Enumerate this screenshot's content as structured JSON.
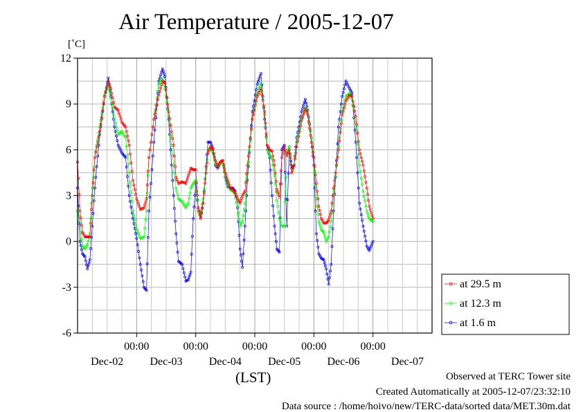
{
  "chart_data": {
    "type": "line",
    "title": "Air Temperature / 2005-12-07",
    "ylabel": "[˚C]",
    "xlabel": "(LST)",
    "ylim": [
      -6,
      12
    ],
    "yticks": [
      -6,
      -3,
      0,
      3,
      6,
      9,
      12
    ],
    "xlim": [
      0,
      144
    ],
    "xticks": [
      {
        "x": 24,
        "time": "00:00",
        "date": "Dec-02"
      },
      {
        "x": 48,
        "time": "00:00",
        "date": "Dec-03"
      },
      {
        "x": 72,
        "time": "00:00",
        "date": "Dec-04"
      },
      {
        "x": 96,
        "time": "00:00",
        "date": "Dec-05"
      },
      {
        "x": 120,
        "time": "00:00",
        "date": "Dec-06"
      }
    ],
    "trailing_date_label": {
      "x": 134,
      "date": "Dec-07"
    },
    "grid": true,
    "legend_position": "right",
    "x_unit_note": "hours from start of plot window",
    "series": [
      {
        "name": "at 29.5 m",
        "color": "#ff0000",
        "points": [
          [
            0,
            5.2
          ],
          [
            1,
            2.0
          ],
          [
            2,
            0.6
          ],
          [
            3,
            0.3
          ],
          [
            4,
            0.3
          ],
          [
            5,
            0.3
          ],
          [
            6,
            3.0
          ],
          [
            7,
            5.5
          ],
          [
            9,
            7.2
          ],
          [
            11,
            9.5
          ],
          [
            12.5,
            10.5
          ],
          [
            13.5,
            10.0
          ],
          [
            15,
            8.8
          ],
          [
            16.5,
            8.6
          ],
          [
            18,
            7.8
          ],
          [
            19.5,
            7.5
          ],
          [
            21,
            6.3
          ],
          [
            22.5,
            4.0
          ],
          [
            24,
            2.8
          ],
          [
            25.5,
            2.1
          ],
          [
            27,
            2.2
          ],
          [
            28,
            2.8
          ],
          [
            29,
            5.5
          ],
          [
            31,
            8.0
          ],
          [
            33,
            9.6
          ],
          [
            34.5,
            10.5
          ],
          [
            35.5,
            10.4
          ],
          [
            37,
            8.5
          ],
          [
            39,
            6.3
          ],
          [
            40,
            4.2
          ],
          [
            41,
            3.8
          ],
          [
            42.5,
            3.9
          ],
          [
            44,
            3.8
          ],
          [
            45,
            4.3
          ],
          [
            46,
            4.8
          ],
          [
            47,
            4.7
          ],
          [
            48,
            4.7
          ],
          [
            49,
            2.2
          ],
          [
            50,
            1.5
          ],
          [
            51,
            2.5
          ],
          [
            53,
            5.8
          ],
          [
            54,
            6.2
          ],
          [
            55,
            6.0
          ],
          [
            56,
            5.3
          ],
          [
            57,
            4.9
          ],
          [
            58,
            5.2
          ],
          [
            59,
            5.3
          ],
          [
            60,
            4.5
          ],
          [
            61,
            4.0
          ],
          [
            62,
            3.5
          ],
          [
            63,
            3.4
          ],
          [
            64,
            3.2
          ],
          [
            65,
            2.8
          ],
          [
            66,
            2.5
          ],
          [
            67,
            3.0
          ],
          [
            68,
            3.3
          ],
          [
            69,
            5.0
          ],
          [
            71,
            8.0
          ],
          [
            73,
            9.5
          ],
          [
            74.5,
            10.0
          ],
          [
            76,
            8.5
          ],
          [
            77,
            6.3
          ],
          [
            78,
            6.0
          ],
          [
            79,
            5.9
          ],
          [
            80,
            5.0
          ],
          [
            81,
            3.4
          ],
          [
            82,
            2.9
          ],
          [
            83,
            5.5
          ],
          [
            84,
            6.2
          ],
          [
            85,
            5.6
          ],
          [
            86,
            6.0
          ],
          [
            87,
            4.5
          ],
          [
            88,
            5.0
          ],
          [
            89,
            6.2
          ],
          [
            91,
            7.9
          ],
          [
            92.5,
            8.7
          ],
          [
            93.5,
            8.3
          ],
          [
            95,
            6.5
          ],
          [
            96,
            5.5
          ],
          [
            97,
            3.8
          ],
          [
            98,
            2.3
          ],
          [
            99,
            1.5
          ],
          [
            100,
            1.2
          ],
          [
            101,
            1.2
          ],
          [
            102,
            1.4
          ],
          [
            103,
            2.0
          ],
          [
            104,
            3.5
          ],
          [
            106,
            6.0
          ],
          [
            107.5,
            8.3
          ],
          [
            109,
            9.2
          ],
          [
            110.5,
            9.6
          ],
          [
            111.5,
            9.5
          ],
          [
            113,
            8.2
          ],
          [
            114.5,
            6.0
          ],
          [
            116,
            5.0
          ],
          [
            117.5,
            3.5
          ],
          [
            118.5,
            2.3
          ],
          [
            120,
            1.5
          ]
        ]
      },
      {
        "name": "at 12.3 m",
        "color": "#00ff00",
        "points": [
          [
            0,
            2.0
          ],
          [
            1,
            1.0
          ],
          [
            2,
            -0.3
          ],
          [
            3,
            -0.5
          ],
          [
            4,
            -0.2
          ],
          [
            5,
            0.5
          ],
          [
            6,
            3.5
          ],
          [
            7,
            5.5
          ],
          [
            9,
            7.5
          ],
          [
            11,
            9.6
          ],
          [
            12.5,
            10.3
          ],
          [
            13.5,
            9.4
          ],
          [
            15,
            8.0
          ],
          [
            16.5,
            7.0
          ],
          [
            18,
            7.2
          ],
          [
            19.5,
            6.8
          ],
          [
            21,
            4.5
          ],
          [
            22.5,
            2.0
          ],
          [
            24,
            0.8
          ],
          [
            25.5,
            0.2
          ],
          [
            27,
            0.3
          ],
          [
            28,
            2.0
          ],
          [
            29,
            5.5
          ],
          [
            31,
            8.0
          ],
          [
            33,
            10.3
          ],
          [
            34.5,
            10.7
          ],
          [
            35.5,
            10.0
          ],
          [
            37,
            8.2
          ],
          [
            39,
            5.0
          ],
          [
            40,
            3.5
          ],
          [
            41,
            2.8
          ],
          [
            42.5,
            2.6
          ],
          [
            44,
            2.2
          ],
          [
            45,
            2.5
          ],
          [
            46,
            3.5
          ],
          [
            47,
            3.8
          ],
          [
            48,
            4.0
          ],
          [
            49,
            2.0
          ],
          [
            50,
            1.7
          ],
          [
            51,
            2.8
          ],
          [
            53,
            6.0
          ],
          [
            54,
            6.1
          ],
          [
            55,
            5.8
          ],
          [
            56,
            5.1
          ],
          [
            57,
            4.9
          ],
          [
            58,
            5.1
          ],
          [
            59,
            5.2
          ],
          [
            60,
            4.3
          ],
          [
            61,
            3.8
          ],
          [
            62,
            3.4
          ],
          [
            63,
            3.3
          ],
          [
            64,
            3.1
          ],
          [
            65,
            2.3
          ],
          [
            66,
            1.0
          ],
          [
            67,
            1.3
          ],
          [
            68,
            2.5
          ],
          [
            69,
            4.5
          ],
          [
            71,
            8.0
          ],
          [
            73,
            9.7
          ],
          [
            74.5,
            10.4
          ],
          [
            76,
            8.3
          ],
          [
            77,
            6.0
          ],
          [
            78,
            5.7
          ],
          [
            79,
            5.4
          ],
          [
            80,
            4.3
          ],
          [
            81,
            2.7
          ],
          [
            82,
            1.5
          ],
          [
            83,
            1.0
          ],
          [
            84,
            1.0
          ],
          [
            85,
            5.8
          ],
          [
            86,
            6.2
          ],
          [
            87,
            4.5
          ],
          [
            88,
            5.0
          ],
          [
            89,
            6.5
          ],
          [
            91,
            8.0
          ],
          [
            92.5,
            8.8
          ],
          [
            93.5,
            8.5
          ],
          [
            95,
            6.8
          ],
          [
            96,
            5.5
          ],
          [
            97,
            2.8
          ],
          [
            98,
            1.3
          ],
          [
            99,
            0.8
          ],
          [
            100,
            0.6
          ],
          [
            101,
            0.0
          ],
          [
            102,
            0.3
          ],
          [
            103,
            1.3
          ],
          [
            104,
            3.0
          ],
          [
            106,
            6.2
          ],
          [
            107.5,
            8.5
          ],
          [
            109,
            9.5
          ],
          [
            110.5,
            9.7
          ],
          [
            111.5,
            9.3
          ],
          [
            113,
            7.8
          ],
          [
            114.5,
            5.0
          ],
          [
            116,
            3.3
          ],
          [
            117.5,
            2.0
          ],
          [
            118.5,
            1.5
          ],
          [
            120,
            1.3
          ]
        ]
      },
      {
        "name": "at 1.6 m",
        "color": "#0000ff",
        "points": [
          [
            0,
            3.5
          ],
          [
            1,
            0.0
          ],
          [
            2,
            -0.8
          ],
          [
            3,
            -1.0
          ],
          [
            4,
            -1.8
          ],
          [
            5,
            -1.2
          ],
          [
            6,
            1.0
          ],
          [
            7,
            3.5
          ],
          [
            9,
            7.0
          ],
          [
            11,
            9.5
          ],
          [
            12.5,
            10.7
          ],
          [
            13.5,
            9.5
          ],
          [
            15,
            7.5
          ],
          [
            16.5,
            6.3
          ],
          [
            18,
            5.8
          ],
          [
            19.5,
            5.5
          ],
          [
            21,
            3.0
          ],
          [
            22.5,
            1.5
          ],
          [
            24,
            0.2
          ],
          [
            25.5,
            -1.5
          ],
          [
            27,
            -3.0
          ],
          [
            28,
            -3.2
          ],
          [
            29,
            2.0
          ],
          [
            31,
            6.5
          ],
          [
            33,
            10.5
          ],
          [
            34.5,
            11.3
          ],
          [
            35.5,
            10.8
          ],
          [
            37,
            8.0
          ],
          [
            39,
            3.0
          ],
          [
            40,
            0.5
          ],
          [
            41,
            -1.3
          ],
          [
            42.5,
            -1.5
          ],
          [
            44,
            -2.6
          ],
          [
            45,
            -2.5
          ],
          [
            46,
            -2.0
          ],
          [
            47,
            1.5
          ],
          [
            48,
            3.8
          ],
          [
            49,
            2.2
          ],
          [
            50,
            1.6
          ],
          [
            51,
            2.5
          ],
          [
            53,
            6.5
          ],
          [
            54,
            6.5
          ],
          [
            55,
            6.1
          ],
          [
            56,
            5.0
          ],
          [
            57,
            4.8
          ],
          [
            58,
            5.2
          ],
          [
            59,
            5.3
          ],
          [
            60,
            4.2
          ],
          [
            61,
            3.6
          ],
          [
            62,
            3.5
          ],
          [
            63,
            3.5
          ],
          [
            64,
            3.3
          ],
          [
            65,
            2.2
          ],
          [
            66,
            -0.5
          ],
          [
            67,
            -1.7
          ],
          [
            68,
            1.0
          ],
          [
            69,
            4.0
          ],
          [
            71,
            8.5
          ],
          [
            73,
            10.3
          ],
          [
            74.5,
            11.0
          ],
          [
            76,
            8.0
          ],
          [
            77,
            6.3
          ],
          [
            78,
            5.5
          ],
          [
            79,
            3.0
          ],
          [
            80,
            1.0
          ],
          [
            81,
            -0.5
          ],
          [
            82,
            -0.7
          ],
          [
            83,
            6.0
          ],
          [
            84,
            6.3
          ],
          [
            85,
            1.0
          ],
          [
            86,
            6.2
          ],
          [
            87,
            4.8
          ],
          [
            88,
            5.0
          ],
          [
            89,
            6.8
          ],
          [
            91,
            8.5
          ],
          [
            92.5,
            9.3
          ],
          [
            93.5,
            8.6
          ],
          [
            95,
            6.8
          ],
          [
            96,
            5.0
          ],
          [
            97,
            0.5
          ],
          [
            98,
            -0.8
          ],
          [
            99,
            -1.1
          ],
          [
            100,
            -1.2
          ],
          [
            101,
            -1.8
          ],
          [
            102,
            -2.8
          ],
          [
            103,
            -1.5
          ],
          [
            104,
            2.0
          ],
          [
            106,
            7.5
          ],
          [
            107.5,
            9.5
          ],
          [
            109,
            10.5
          ],
          [
            110.5,
            10.0
          ],
          [
            111.5,
            9.7
          ],
          [
            113,
            6.5
          ],
          [
            114.5,
            2.5
          ],
          [
            116,
            1.0
          ],
          [
            117.5,
            -0.3
          ],
          [
            118.5,
            -0.6
          ],
          [
            120,
            0.0
          ]
        ]
      }
    ]
  },
  "footer": {
    "line1": "Observed at TERC Tower site",
    "line2": "Created Automatically at 2005-12-07/23:32:10",
    "line3": "Data source : /home/hoivo/new/TERC-data/sorted  data/MET.30m.dat"
  }
}
